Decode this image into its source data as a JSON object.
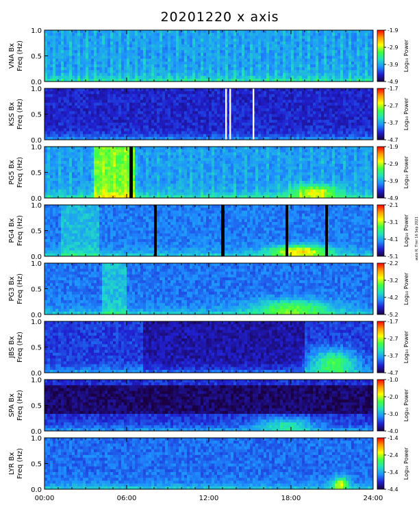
{
  "title": "20201220  x axis",
  "stamp": "auto R. Tirer 16 Sep 2021",
  "colorbar_label": "Log₁₀ Power",
  "chart_data": {
    "type": "heatmap",
    "title": "20201220  x axis",
    "x_ticks": [
      "00:00",
      "06:00",
      "12:00",
      "18:00",
      "24:00"
    ],
    "xlim_hours": [
      0,
      24
    ],
    "y_ticks": [
      "0.0",
      "0.5",
      "1.0"
    ],
    "ylim_hz": [
      0,
      1
    ],
    "colorscale": [
      "#1a0040",
      "#2020d0",
      "#1e90ff",
      "#20e0c0",
      "#40ff40",
      "#ffff00",
      "#ff9900",
      "#ff0000"
    ],
    "panels": [
      {
        "station": "VNA Bx",
        "ylabel": "Freq (Hz)",
        "colorbar_ticks": [
          "-1.9",
          "-2.9",
          "-3.9",
          "-4.9"
        ],
        "colorbar_range": [
          -4.9,
          -1.9
        ]
      },
      {
        "station": "KSS Bx",
        "ylabel": "Freq (Hz)",
        "colorbar_ticks": [
          "-1.7",
          "-2.7",
          "-3.7",
          "-4.7"
        ],
        "colorbar_range": [
          -4.7,
          -1.7
        ]
      },
      {
        "station": "PG5 Bx",
        "ylabel": "Freq (Hz)",
        "colorbar_ticks": [
          "-1.9",
          "-2.9",
          "-3.9",
          "-4.9"
        ],
        "colorbar_range": [
          -4.9,
          -1.9
        ]
      },
      {
        "station": "PG4 Bx",
        "ylabel": "Freq (Hz)",
        "colorbar_ticks": [
          "-2.1",
          "-3.1",
          "-4.1",
          "-5.1"
        ],
        "colorbar_range": [
          -5.1,
          -2.1
        ]
      },
      {
        "station": "PG3 Bx",
        "ylabel": "Freq (Hz)",
        "colorbar_ticks": [
          "-2.2",
          "-3.2",
          "-4.2",
          "-5.2"
        ],
        "colorbar_range": [
          -5.2,
          -2.2
        ]
      },
      {
        "station": "JBS Bx",
        "ylabel": "Freq (Hz)",
        "colorbar_ticks": [
          "-1.7",
          "-2.7",
          "-3.7",
          "-4.7"
        ],
        "colorbar_range": [
          -4.7,
          -1.7
        ]
      },
      {
        "station": "SPA Bx",
        "ylabel": "Freq (Hz)",
        "colorbar_ticks": [
          "-1.0",
          "-2.0",
          "-3.0",
          "-4.0"
        ],
        "colorbar_range": [
          -4.0,
          -1.0
        ]
      },
      {
        "station": "LYR Bx",
        "ylabel": "Freq (Hz)",
        "colorbar_ticks": [
          "-1.4",
          "-2.4",
          "-3.4",
          "-4.4"
        ],
        "colorbar_range": [
          -4.4,
          -1.4
        ]
      }
    ]
  }
}
